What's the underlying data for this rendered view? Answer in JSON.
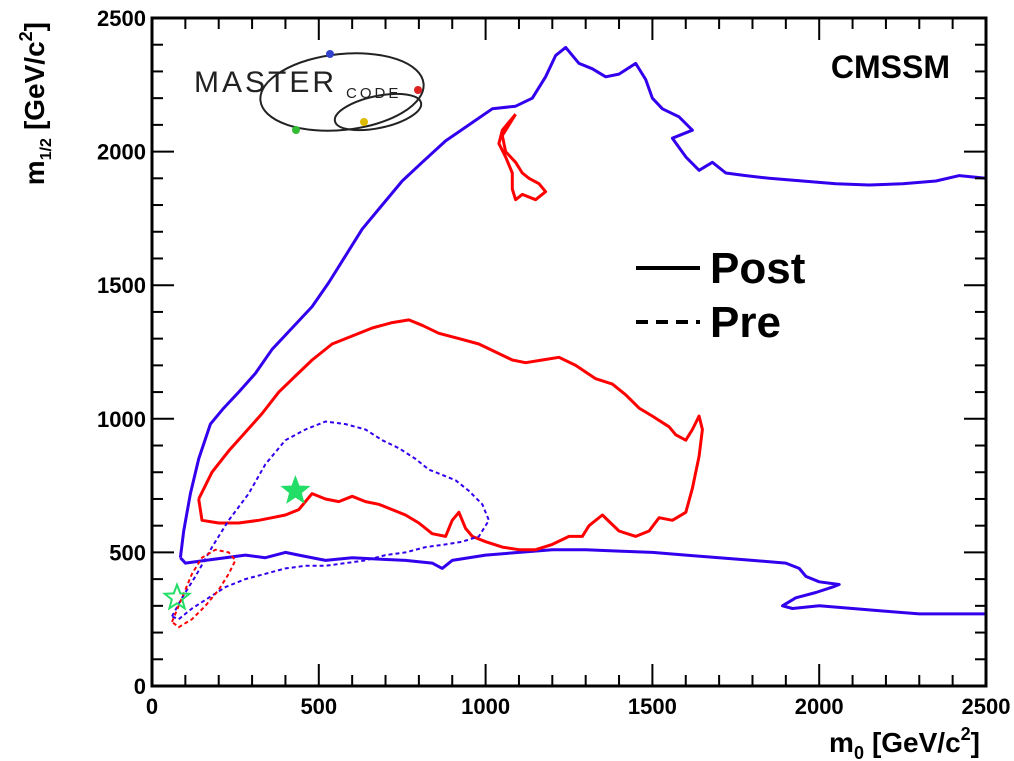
{
  "logo": {
    "text_main": "MASTER",
    "text_small": "CODE"
  },
  "chart_data": {
    "type": "line",
    "title": "",
    "model_label": "CMSSM",
    "xlabel_main": "m",
    "xlabel_sub": "0",
    "xlabel_unit": "[GeV/c",
    "xlabel_sup": "2",
    "xlabel_close": "]",
    "ylabel_main": "m",
    "ylabel_sub": "1/2",
    "ylabel_unit": "[GeV/c",
    "ylabel_sup": "2",
    "ylabel_close": "]",
    "xlim": [
      0,
      2500
    ],
    "ylim": [
      0,
      2500
    ],
    "xticks": [
      0,
      500,
      1000,
      1500,
      2000,
      2500
    ],
    "yticks": [
      0,
      500,
      1000,
      1500,
      2000,
      2500
    ],
    "xtick_labels": [
      "0",
      "500",
      "1000",
      "1500",
      "2000",
      "2500"
    ],
    "ytick_labels": [
      "0",
      "500",
      "1000",
      "1500",
      "2000",
      "2500"
    ],
    "grid": false,
    "legend": {
      "position": "center-right",
      "entries": [
        {
          "label": "Post",
          "style": "solid"
        },
        {
          "label": "Pre",
          "style": "dashed"
        }
      ]
    },
    "colors": {
      "red": "#ff0000",
      "blue": "#3300ee",
      "green_star": "#22dd66"
    },
    "series": [
      {
        "color_key": "blue",
        "style": "solid",
        "points": [
          [
            85,
            480
          ],
          [
            95,
            580
          ],
          [
            115,
            720
          ],
          [
            140,
            850
          ],
          [
            175,
            980
          ],
          [
            215,
            1040
          ],
          [
            260,
            1100
          ],
          [
            310,
            1170
          ],
          [
            360,
            1260
          ],
          [
            420,
            1340
          ],
          [
            480,
            1420
          ],
          [
            530,
            1510
          ],
          [
            580,
            1610
          ],
          [
            630,
            1710
          ],
          [
            690,
            1800
          ],
          [
            750,
            1890
          ],
          [
            810,
            1960
          ],
          [
            880,
            2040
          ],
          [
            950,
            2100
          ],
          [
            1020,
            2160
          ],
          [
            1090,
            2170
          ],
          [
            1140,
            2200
          ],
          [
            1180,
            2280
          ],
          [
            1210,
            2360
          ],
          [
            1240,
            2390
          ],
          [
            1280,
            2330
          ],
          [
            1320,
            2310
          ],
          [
            1360,
            2280
          ],
          [
            1400,
            2290
          ],
          [
            1450,
            2330
          ],
          [
            1480,
            2270
          ],
          [
            1500,
            2200
          ],
          [
            1530,
            2160
          ],
          [
            1580,
            2130
          ],
          [
            1620,
            2080
          ],
          [
            1560,
            2050
          ],
          [
            1600,
            1980
          ],
          [
            1640,
            1930
          ],
          [
            1680,
            1960
          ],
          [
            1720,
            1920
          ],
          [
            1780,
            1910
          ],
          [
            1850,
            1900
          ],
          [
            1950,
            1890
          ],
          [
            2050,
            1880
          ],
          [
            2150,
            1875
          ],
          [
            2250,
            1880
          ],
          [
            2350,
            1890
          ],
          [
            2420,
            1910
          ],
          [
            2500,
            1900
          ],
          [
            2500,
            270
          ],
          [
            2400,
            270
          ],
          [
            2300,
            270
          ],
          [
            2200,
            280
          ],
          [
            2100,
            290
          ],
          [
            2000,
            300
          ],
          [
            1920,
            290
          ],
          [
            1890,
            300
          ],
          [
            1930,
            330
          ],
          [
            1990,
            350
          ],
          [
            2040,
            370
          ],
          [
            2060,
            380
          ],
          [
            2000,
            390
          ],
          [
            1960,
            410
          ],
          [
            1940,
            440
          ],
          [
            1900,
            460
          ],
          [
            1800,
            470
          ],
          [
            1700,
            480
          ],
          [
            1600,
            490
          ],
          [
            1500,
            500
          ],
          [
            1400,
            505
          ],
          [
            1300,
            510
          ],
          [
            1200,
            510
          ],
          [
            1100,
            500
          ],
          [
            1000,
            490
          ],
          [
            900,
            470
          ],
          [
            870,
            440
          ],
          [
            840,
            460
          ],
          [
            760,
            470
          ],
          [
            680,
            475
          ],
          [
            600,
            480
          ],
          [
            520,
            470
          ],
          [
            440,
            490
          ],
          [
            400,
            500
          ],
          [
            340,
            480
          ],
          [
            280,
            490
          ],
          [
            220,
            480
          ],
          [
            160,
            470
          ],
          [
            100,
            460
          ],
          [
            85,
            480
          ]
        ]
      },
      {
        "color_key": "red",
        "style": "solid",
        "points": [
          [
            140,
            700
          ],
          [
            180,
            800
          ],
          [
            230,
            880
          ],
          [
            280,
            950
          ],
          [
            330,
            1020
          ],
          [
            380,
            1100
          ],
          [
            430,
            1160
          ],
          [
            480,
            1220
          ],
          [
            540,
            1280
          ],
          [
            600,
            1310
          ],
          [
            660,
            1340
          ],
          [
            720,
            1360
          ],
          [
            770,
            1370
          ],
          [
            810,
            1350
          ],
          [
            860,
            1320
          ],
          [
            920,
            1300
          ],
          [
            980,
            1280
          ],
          [
            1030,
            1250
          ],
          [
            1080,
            1220
          ],
          [
            1120,
            1210
          ],
          [
            1170,
            1220
          ],
          [
            1220,
            1230
          ],
          [
            1270,
            1200
          ],
          [
            1330,
            1150
          ],
          [
            1380,
            1130
          ],
          [
            1420,
            1090
          ],
          [
            1460,
            1040
          ],
          [
            1500,
            1010
          ],
          [
            1550,
            970
          ],
          [
            1570,
            940
          ],
          [
            1600,
            920
          ],
          [
            1620,
            960
          ],
          [
            1640,
            1010
          ],
          [
            1650,
            960
          ],
          [
            1640,
            860
          ],
          [
            1620,
            740
          ],
          [
            1600,
            650
          ],
          [
            1560,
            620
          ],
          [
            1520,
            630
          ],
          [
            1490,
            580
          ],
          [
            1450,
            560
          ],
          [
            1400,
            580
          ],
          [
            1350,
            640
          ],
          [
            1310,
            600
          ],
          [
            1290,
            560
          ],
          [
            1250,
            560
          ],
          [
            1200,
            530
          ],
          [
            1150,
            510
          ],
          [
            1100,
            510
          ],
          [
            1050,
            520
          ],
          [
            1000,
            540
          ],
          [
            960,
            560
          ],
          [
            940,
            590
          ],
          [
            920,
            650
          ],
          [
            900,
            620
          ],
          [
            880,
            560
          ],
          [
            840,
            570
          ],
          [
            800,
            610
          ],
          [
            760,
            640
          ],
          [
            720,
            660
          ],
          [
            680,
            680
          ],
          [
            640,
            690
          ],
          [
            600,
            710
          ],
          [
            560,
            690
          ],
          [
            520,
            700
          ],
          [
            480,
            720
          ],
          [
            440,
            660
          ],
          [
            400,
            640
          ],
          [
            360,
            630
          ],
          [
            320,
            620
          ],
          [
            260,
            610
          ],
          [
            200,
            610
          ],
          [
            150,
            620
          ],
          [
            140,
            700
          ]
        ]
      },
      {
        "color_key": "red",
        "style": "solid",
        "points": [
          [
            1090,
            2140
          ],
          [
            1070,
            2100
          ],
          [
            1050,
            2060
          ],
          [
            1060,
            2000
          ],
          [
            1090,
            1960
          ],
          [
            1110,
            1920
          ],
          [
            1130,
            1900
          ],
          [
            1160,
            1880
          ],
          [
            1180,
            1850
          ],
          [
            1150,
            1820
          ],
          [
            1110,
            1840
          ],
          [
            1090,
            1820
          ],
          [
            1080,
            1860
          ],
          [
            1080,
            1920
          ],
          [
            1060,
            1980
          ],
          [
            1040,
            2030
          ],
          [
            1050,
            2080
          ],
          [
            1090,
            2140
          ]
        ]
      },
      {
        "color_key": "blue",
        "style": "dashed",
        "points": [
          [
            60,
            260
          ],
          [
            90,
            330
          ],
          [
            130,
            410
          ],
          [
            180,
            520
          ],
          [
            230,
            620
          ],
          [
            290,
            720
          ],
          [
            340,
            830
          ],
          [
            400,
            920
          ],
          [
            460,
            960
          ],
          [
            520,
            990
          ],
          [
            580,
            980
          ],
          [
            640,
            960
          ],
          [
            690,
            920
          ],
          [
            740,
            890
          ],
          [
            790,
            850
          ],
          [
            830,
            810
          ],
          [
            870,
            790
          ],
          [
            910,
            770
          ],
          [
            950,
            730
          ],
          [
            990,
            680
          ],
          [
            1010,
            620
          ],
          [
            980,
            560
          ],
          [
            930,
            540
          ],
          [
            880,
            530
          ],
          [
            820,
            520
          ],
          [
            760,
            500
          ],
          [
            700,
            490
          ],
          [
            640,
            470
          ],
          [
            580,
            460
          ],
          [
            520,
            450
          ],
          [
            460,
            450
          ],
          [
            400,
            440
          ],
          [
            340,
            420
          ],
          [
            280,
            400
          ],
          [
            220,
            370
          ],
          [
            170,
            330
          ],
          [
            120,
            290
          ],
          [
            80,
            250
          ],
          [
            60,
            260
          ]
        ]
      },
      {
        "color_key": "red",
        "style": "dashed",
        "points": [
          [
            60,
            240
          ],
          [
            90,
            330
          ],
          [
            120,
            420
          ],
          [
            150,
            480
          ],
          [
            190,
            510
          ],
          [
            230,
            500
          ],
          [
            250,
            470
          ],
          [
            230,
            420
          ],
          [
            200,
            360
          ],
          [
            160,
            300
          ],
          [
            120,
            250
          ],
          [
            80,
            220
          ],
          [
            60,
            240
          ]
        ]
      }
    ],
    "markers": [
      {
        "label": "best fit post",
        "x": 430,
        "y": 730,
        "symbol": "filled-star",
        "color_key": "green_star"
      },
      {
        "label": "best fit pre",
        "x": 75,
        "y": 330,
        "symbol": "open-star",
        "color_key": "green_star"
      }
    ]
  }
}
